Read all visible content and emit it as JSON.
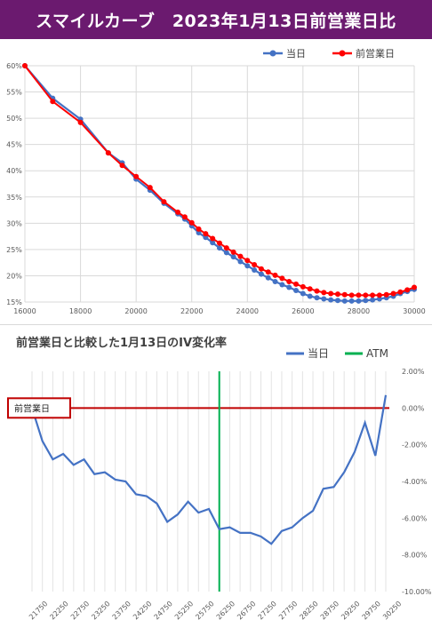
{
  "title": "スマイルカーブ　2023年1月13日前営業日比",
  "chart_data": [
    {
      "type": "line",
      "title": "",
      "x": [
        16000,
        17000,
        18000,
        19000,
        19500,
        20000,
        20500,
        21000,
        21500,
        21750,
        22000,
        22250,
        22500,
        22750,
        23000,
        23250,
        23500,
        23750,
        24000,
        24250,
        24500,
        24750,
        25000,
        25250,
        25500,
        25750,
        26000,
        26250,
        26500,
        26750,
        27000,
        27250,
        27500,
        27750,
        28000,
        28250,
        28500,
        28750,
        29000,
        29250,
        29500,
        29750,
        30000
      ],
      "series": [
        {
          "name": "当日",
          "color": "#4472c4",
          "values": [
            60,
            53.8,
            49.8,
            43.4,
            41.5,
            38.4,
            36.3,
            33.8,
            31.8,
            30.8,
            29.5,
            28.2,
            27.3,
            26.3,
            25.3,
            24.4,
            23.6,
            22.7,
            21.9,
            21.1,
            20.3,
            19.6,
            18.9,
            18.3,
            17.8,
            17.2,
            16.6,
            16.1,
            15.8,
            15.6,
            15.4,
            15.3,
            15.2,
            15.2,
            15.2,
            15.3,
            15.4,
            15.6,
            15.8,
            16.1,
            16.6,
            17,
            17.4
          ]
        },
        {
          "name": "前営業日",
          "color": "#ff0000",
          "values": [
            60,
            53.2,
            49.2,
            43.4,
            41,
            38.9,
            36.8,
            34.1,
            32.1,
            31.2,
            30.1,
            28.9,
            28,
            27.1,
            26.2,
            25.3,
            24.5,
            23.7,
            22.9,
            22.1,
            21.3,
            20.7,
            20.1,
            19.5,
            18.9,
            18.4,
            17.9,
            17.5,
            17.1,
            16.8,
            16.6,
            16.5,
            16.4,
            16.3,
            16.3,
            16.3,
            16.3,
            16.3,
            16.4,
            16.6,
            16.9,
            17.3,
            17.8
          ]
        }
      ],
      "xlim": [
        16000,
        30000
      ],
      "ylim": [
        15,
        60
      ],
      "x_ticks": [
        "16000",
        "18000",
        "20000",
        "22000",
        "24000",
        "26000",
        "28000",
        "30000"
      ],
      "y_ticks": [
        "15%",
        "20%",
        "25%",
        "30%",
        "35%",
        "40%",
        "45%",
        "50%",
        "55%",
        "60%"
      ],
      "legend": "top-right",
      "grid": true
    },
    {
      "type": "line",
      "title": "前営業日と比較した1月13日のIV変化率",
      "x": [
        "21750",
        "22000",
        "22250",
        "22500",
        "22750",
        "23000",
        "23250",
        "23500",
        "23750",
        "24000",
        "24250",
        "24500",
        "24750",
        "25000",
        "25250",
        "25500",
        "25750",
        "26000",
        "26250",
        "26500",
        "26750",
        "27000",
        "27250",
        "27500",
        "27750",
        "28000",
        "28250",
        "28500",
        "28750",
        "29000",
        "29250",
        "29500",
        "29750",
        "30000",
        "30250"
      ],
      "series": [
        {
          "name": "当日",
          "color": "#4472c4",
          "values": [
            0.0,
            -1.8,
            -2.8,
            -2.5,
            -3.1,
            -2.8,
            -3.6,
            -3.5,
            -3.9,
            -4.0,
            -4.7,
            -4.8,
            -5.2,
            -6.2,
            -5.8,
            -5.1,
            -5.7,
            -5.5,
            -6.6,
            -6.5,
            -6.8,
            -6.8,
            -7.0,
            -7.4,
            -6.7,
            -6.5,
            -6.0,
            -5.6,
            -4.4,
            -4.3,
            -3.5,
            -2.4,
            -0.8,
            -2.6,
            0.7
          ]
        },
        {
          "name": "ATM",
          "color": "#00b050"
        }
      ],
      "atm_strike": "26250",
      "reference_label": "前営業日",
      "ylim": [
        -10,
        2
      ],
      "y_ticks": [
        "2.00%",
        "0.00%",
        "-2.00%",
        "-4.00%",
        "-6.00%",
        "-8.00%",
        "-10.00%"
      ],
      "x_ticks": [
        "21750",
        "22250",
        "22750",
        "23250",
        "23750",
        "24250",
        "24750",
        "25250",
        "25750",
        "26250",
        "26750",
        "27250",
        "27750",
        "28250",
        "28750",
        "29250",
        "29750",
        "30250"
      ],
      "legend": "top-center",
      "grid": true
    }
  ]
}
